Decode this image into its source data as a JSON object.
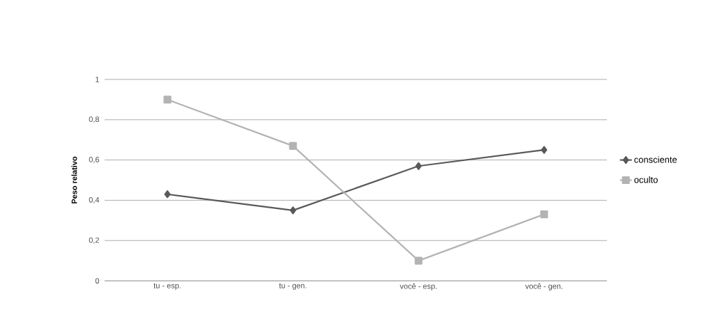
{
  "chart_data": {
    "type": "line",
    "ylabel": "Peso relativo",
    "categories": [
      "tu - esp.",
      "tu - gen.",
      "você - esp.",
      "você - gen."
    ],
    "series": [
      {
        "name": "consciente",
        "color": "#595959",
        "marker": "diamond",
        "values": [
          0.43,
          0.35,
          0.57,
          0.65
        ]
      },
      {
        "name": "oculto",
        "color": "#b3b3b3",
        "marker": "square",
        "values": [
          0.9,
          0.67,
          0.1,
          0.33
        ]
      }
    ],
    "ylim": [
      0,
      1
    ],
    "yticks": [
      0,
      {
        "value": 0.2,
        "label": "0,2"
      },
      {
        "value": 0.4,
        "label": "0,4"
      },
      {
        "value": 0.6,
        "label": "0,6"
      },
      {
        "value": 0.8,
        "label": "0,8"
      },
      1
    ],
    "grid": "y",
    "legend": "right",
    "line_style": "solid"
  }
}
